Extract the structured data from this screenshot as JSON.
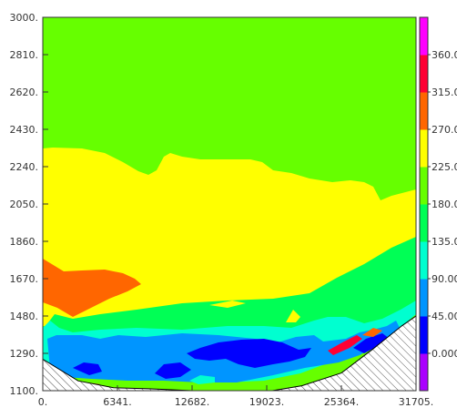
{
  "chart_data": {
    "type": "contour",
    "title": "",
    "xlabel": "",
    "ylabel": "",
    "xlim": [
      0,
      31705
    ],
    "ylim": [
      1100,
      3000
    ],
    "x_ticks": [
      "0.",
      "6341.",
      "12682.",
      "19023.",
      "25364.",
      "31705."
    ],
    "y_ticks": [
      "1100.",
      "1290.",
      "1480.",
      "1670.",
      "1860.",
      "2050.",
      "2240.",
      "2430.",
      "2620.",
      "2810.",
      "3000."
    ],
    "colorbar": {
      "ticks": [
        "0.000",
        "45.00",
        "90.00",
        "135.0",
        "180.0",
        "225.0",
        "270.0",
        "315.0",
        "360.0"
      ],
      "colors": [
        "#aa00ff",
        "#0000ff",
        "#0095ff",
        "#00ffd0",
        "#00ff55",
        "#66ff00",
        "#ffff00",
        "#ff6600",
        "#ff0033",
        "#ff00ff"
      ],
      "range": [
        -45,
        405
      ]
    },
    "fill_levels": [
      {
        "range": "180–225",
        "color": "#66ff00"
      },
      {
        "range": "225–270",
        "color": "#ffff00"
      },
      {
        "range": "270–315",
        "color": "#ff6600"
      },
      {
        "range": "135–180",
        "color": "#00ff55"
      },
      {
        "range": "90–135",
        "color": "#00ffd0"
      },
      {
        "range": "45–90",
        "color": "#0095ff"
      },
      {
        "range": "0–45",
        "color": "#0000ff"
      }
    ],
    "terrain": {
      "x": [
        0,
        3000,
        6000,
        9000,
        12682,
        16000,
        19500,
        22000,
        25364,
        28000,
        30500,
        31705
      ],
      "y": [
        1260,
        1150,
        1115,
        1110,
        1100,
        1100,
        1100,
        1125,
        1190,
        1310,
        1430,
        1480
      ],
      "pattern": "hatched"
    }
  }
}
